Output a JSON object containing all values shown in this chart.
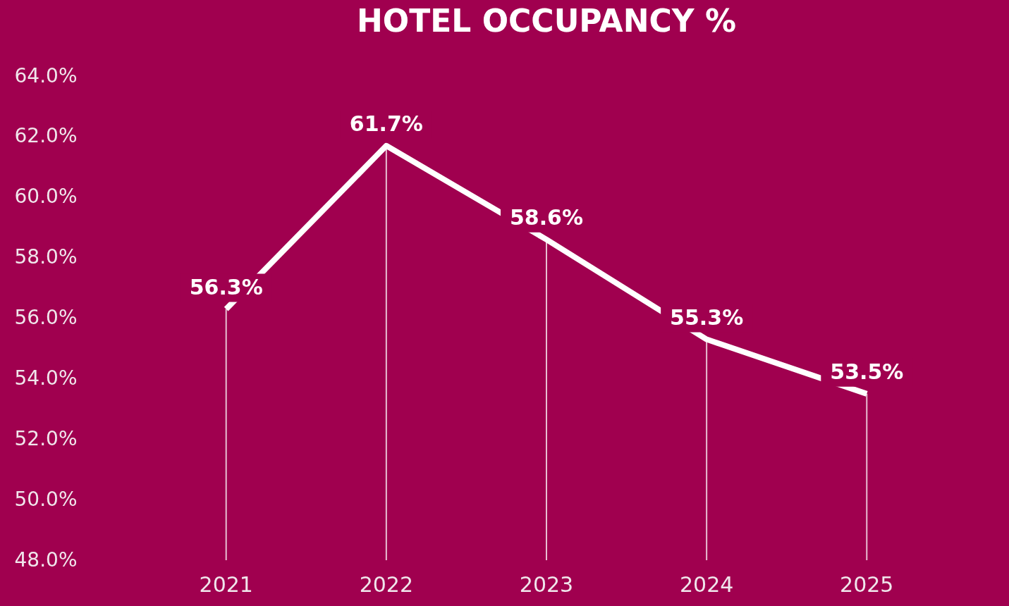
{
  "chart_data": {
    "type": "line",
    "title": "HOTEL OCCUPANCY %",
    "categories": [
      "2021",
      "2022",
      "2023",
      "2024",
      "2025"
    ],
    "series": [
      {
        "color": "#ffffff",
        "values": [
          56.3,
          61.7,
          58.6,
          55.3,
          53.5
        ],
        "value_labels": [
          "56.3%",
          "61.7%",
          "58.6%",
          "55.3%",
          "53.5%"
        ]
      }
    ],
    "ylim": [
      48,
      64
    ],
    "yticks": [
      {
        "value": 48,
        "label": "48.0%"
      },
      {
        "value": 50,
        "label": "50.0%"
      },
      {
        "value": 52,
        "label": "52.0%"
      },
      {
        "value": 54,
        "label": "54.0%"
      },
      {
        "value": 56,
        "label": "56.0%"
      },
      {
        "value": 58,
        "label": "58.0%"
      },
      {
        "value": 60,
        "label": "60.0%"
      },
      {
        "value": 62,
        "label": "62.0%"
      },
      {
        "value": 64,
        "label": "64.0%"
      }
    ],
    "grid": "x",
    "line_style": "solid"
  }
}
